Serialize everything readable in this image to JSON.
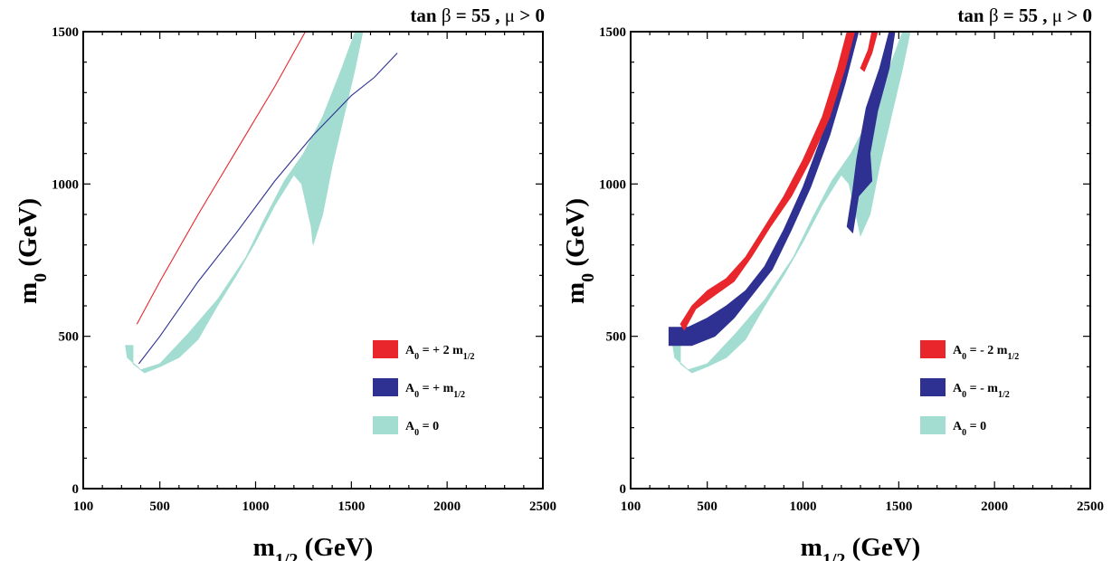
{
  "chart_data": [
    {
      "type": "area",
      "title_parts": [
        "tan ",
        "β",
        " = 55 ,  ",
        "μ",
        " > 0"
      ],
      "xlabel": {
        "main": "m",
        "sub": "1/2",
        "unit": " (GeV)"
      },
      "ylabel": {
        "main": "m",
        "sub": "0",
        "unit": " (GeV)"
      },
      "xlim": [
        100,
        2500
      ],
      "ylim": [
        0,
        1500
      ],
      "xticks": [
        "100",
        "500",
        "1000",
        "1500",
        "2000",
        "2500"
      ],
      "yticks": [
        "0",
        "500",
        "1000",
        "1500"
      ],
      "grid": false,
      "legend_position": "lower-right",
      "series": [
        {
          "name_parts": [
            "A",
            "0",
            " =  + 2 m",
            "1/2"
          ],
          "color": "#e8262b",
          "shape": "line",
          "path": [
            [
              380,
              540
            ],
            [
              500,
              680
            ],
            [
              700,
              900
            ],
            [
              900,
              1110
            ],
            [
              1100,
              1320
            ],
            [
              1260,
              1500
            ]
          ]
        },
        {
          "name_parts": [
            "A",
            "0",
            " =  + m",
            "1/2"
          ],
          "color": "#2e3192",
          "shape": "line",
          "path": [
            [
              390,
              410
            ],
            [
              500,
              500
            ],
            [
              700,
              680
            ],
            [
              900,
              840
            ],
            [
              1100,
              1010
            ],
            [
              1300,
              1160
            ],
            [
              1500,
              1290
            ],
            [
              1620,
              1350
            ],
            [
              1740,
              1430
            ]
          ]
        },
        {
          "name_parts": [
            "A",
            "0",
            " =  0"
          ],
          "color": "#a3ddd1",
          "shape": "band",
          "outer": [
            [
              320,
              470
            ],
            [
              330,
              430
            ],
            [
              400,
              390
            ],
            [
              500,
              410
            ],
            [
              650,
              510
            ],
            [
              800,
              620
            ],
            [
              950,
              760
            ],
            [
              1050,
              890
            ],
            [
              1150,
              1010
            ],
            [
              1250,
              1100
            ],
            [
              1350,
              1220
            ],
            [
              1450,
              1380
            ],
            [
              1520,
              1500
            ]
          ],
          "inner": [
            [
              1560,
              1500
            ],
            [
              1520,
              1380
            ],
            [
              1460,
              1220
            ],
            [
              1400,
              1060
            ],
            [
              1350,
              900
            ],
            [
              1300,
              800
            ],
            [
              1290,
              860
            ],
            [
              1240,
              1000
            ],
            [
              1200,
              1030
            ],
            [
              1100,
              930
            ],
            [
              1000,
              810
            ],
            [
              900,
              700
            ],
            [
              800,
              600
            ],
            [
              700,
              490
            ],
            [
              600,
              430
            ],
            [
              500,
              400
            ],
            [
              420,
              380
            ],
            [
              360,
              410
            ],
            [
              360,
              470
            ]
          ]
        }
      ]
    },
    {
      "type": "area",
      "title_parts": [
        "tan ",
        "β",
        " = 55 ,  ",
        "μ",
        " > 0"
      ],
      "xlabel": {
        "main": "m",
        "sub": "1/2",
        "unit": " (GeV)"
      },
      "ylabel": {
        "main": "m",
        "sub": "0",
        "unit": " (GeV)"
      },
      "xlim": [
        100,
        2500
      ],
      "ylim": [
        0,
        1500
      ],
      "xticks": [
        "100",
        "500",
        "1000",
        "1500",
        "2000",
        "2500"
      ],
      "yticks": [
        "0",
        "500",
        "1000",
        "1500"
      ],
      "grid": false,
      "legend_position": "lower-right",
      "series": [
        {
          "name_parts": [
            "A",
            "0",
            " =  - 2 m",
            "1/2"
          ],
          "color": "#e8262b",
          "shape": "band",
          "outer": [
            [
              360,
              540
            ],
            [
              420,
              600
            ],
            [
              500,
              650
            ],
            [
              600,
              690
            ],
            [
              700,
              760
            ],
            [
              800,
              860
            ],
            [
              900,
              960
            ],
            [
              1000,
              1080
            ],
            [
              1100,
              1220
            ],
            [
              1180,
              1380
            ],
            [
              1230,
              1500
            ]
          ],
          "inner": [
            [
              1270,
              1500
            ],
            [
              1220,
              1380
            ],
            [
              1140,
              1220
            ],
            [
              1040,
              1080
            ],
            [
              940,
              960
            ],
            [
              830,
              860
            ],
            [
              730,
              760
            ],
            [
              640,
              680
            ],
            [
              550,
              640
            ],
            [
              440,
              590
            ],
            [
              380,
              520
            ]
          ]
        },
        {
          "name_parts": [
            "A",
            "0",
            " =  - m",
            "1/2"
          ],
          "color": "#2e3192",
          "shape": "band",
          "outer": [
            [
              300,
              530
            ],
            [
              400,
              530
            ],
            [
              500,
              560
            ],
            [
              600,
              600
            ],
            [
              700,
              650
            ],
            [
              800,
              730
            ],
            [
              900,
              850
            ],
            [
              1000,
              990
            ],
            [
              1100,
              1160
            ],
            [
              1180,
              1330
            ],
            [
              1240,
              1500
            ]
          ],
          "inner": [
            [
              1290,
              1500
            ],
            [
              1220,
              1330
            ],
            [
              1140,
              1160
            ],
            [
              1040,
              990
            ],
            [
              940,
              850
            ],
            [
              840,
              720
            ],
            [
              740,
              640
            ],
            [
              640,
              560
            ],
            [
              540,
              500
            ],
            [
              420,
              470
            ],
            [
              300,
              470
            ]
          ]
        },
        {
          "name_parts": [
            "A",
            "0",
            " =  0"
          ],
          "color": "#a3ddd1",
          "shape": "band",
          "outer": [
            [
              320,
              470
            ],
            [
              330,
              430
            ],
            [
              400,
              390
            ],
            [
              500,
              410
            ],
            [
              650,
              510
            ],
            [
              800,
              620
            ],
            [
              950,
              760
            ],
            [
              1050,
              890
            ],
            [
              1150,
              1010
            ],
            [
              1250,
              1100
            ],
            [
              1350,
              1220
            ],
            [
              1450,
              1380
            ],
            [
              1520,
              1500
            ]
          ],
          "inner": [
            [
              1560,
              1500
            ],
            [
              1520,
              1380
            ],
            [
              1460,
              1220
            ],
            [
              1400,
              1060
            ],
            [
              1350,
              900
            ],
            [
              1300,
              830
            ],
            [
              1290,
              860
            ],
            [
              1240,
              1000
            ],
            [
              1200,
              1030
            ],
            [
              1100,
              930
            ],
            [
              1000,
              810
            ],
            [
              900,
              700
            ],
            [
              800,
              600
            ],
            [
              700,
              490
            ],
            [
              600,
              430
            ],
            [
              500,
              400
            ],
            [
              420,
              380
            ],
            [
              360,
              410
            ],
            [
              360,
              470
            ]
          ]
        }
      ],
      "extra_regions": [
        {
          "color": "#2e3192",
          "polygon": [
            [
              1230,
              860
            ],
            [
              1260,
              980
            ],
            [
              1280,
              1080
            ],
            [
              1330,
              1250
            ],
            [
              1400,
              1380
            ],
            [
              1450,
              1500
            ],
            [
              1480,
              1500
            ],
            [
              1450,
              1380
            ],
            [
              1390,
              1240
            ],
            [
              1350,
              1100
            ],
            [
              1360,
              1010
            ],
            [
              1290,
              960
            ],
            [
              1260,
              840
            ]
          ]
        },
        {
          "color": "#e8262b",
          "polygon": [
            [
              1300,
              1380
            ],
            [
              1340,
              1440
            ],
            [
              1360,
              1500
            ],
            [
              1390,
              1500
            ],
            [
              1360,
              1430
            ],
            [
              1320,
              1370
            ]
          ]
        }
      ]
    }
  ]
}
